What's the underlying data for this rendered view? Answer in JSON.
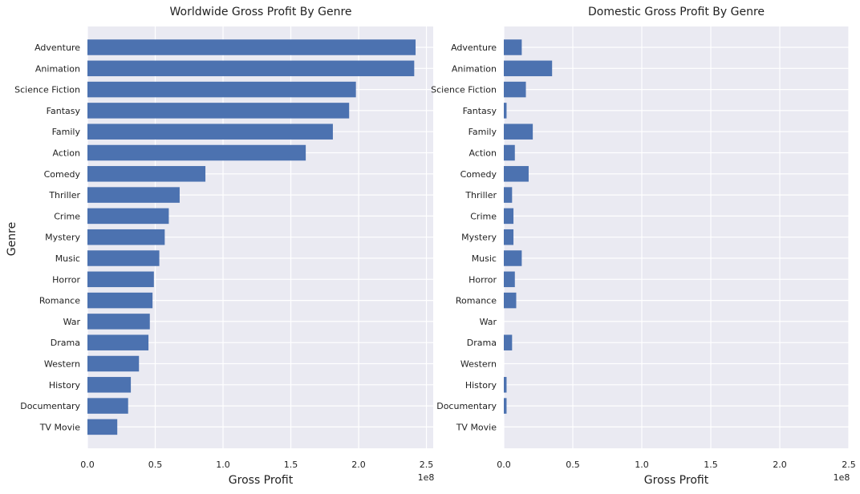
{
  "figure": {
    "ylabel": "Genre"
  },
  "chart_data": [
    {
      "type": "bar",
      "orientation": "horizontal",
      "title": "Worldwide Gross Profit By Genre",
      "xlabel": "Gross Profit",
      "ylabel": "Genre",
      "x_offset_label": "1e8",
      "xlim": [
        0,
        2.55
      ],
      "x_unit": "1e8",
      "x_ticks": [
        "0.0",
        "0.5",
        "1.0",
        "1.5",
        "2.0",
        "2.5"
      ],
      "grid": true,
      "bar_color": "#4c72b0",
      "background": "#eaeaf2",
      "categories": [
        "Adventure",
        "Animation",
        "Science Fiction",
        "Fantasy",
        "Family",
        "Action",
        "Comedy",
        "Thriller",
        "Crime",
        "Mystery",
        "Music",
        "Horror",
        "Romance",
        "War",
        "Drama",
        "Western",
        "History",
        "Documentary",
        "TV Movie"
      ],
      "values": [
        2.42,
        2.41,
        1.98,
        1.93,
        1.81,
        1.61,
        0.87,
        0.68,
        0.6,
        0.57,
        0.53,
        0.49,
        0.48,
        0.46,
        0.45,
        0.38,
        0.32,
        0.3,
        0.22
      ]
    },
    {
      "type": "bar",
      "orientation": "horizontal",
      "title": "Domestic Gross Profit By Genre",
      "xlabel": "Gross Profit",
      "ylabel": "",
      "x_offset_label": "1e8",
      "xlim": [
        0,
        2.5
      ],
      "x_unit": "1e8",
      "x_ticks": [
        "0.0",
        "0.5",
        "1.0",
        "1.5",
        "2.0",
        "2.5"
      ],
      "grid": true,
      "bar_color": "#4c72b0",
      "background": "#eaeaf2",
      "categories": [
        "Adventure",
        "Animation",
        "Science Fiction",
        "Fantasy",
        "Family",
        "Action",
        "Comedy",
        "Thriller",
        "Crime",
        "Mystery",
        "Music",
        "Horror",
        "Romance",
        "War",
        "Drama",
        "Western",
        "History",
        "Documentary",
        "TV Movie"
      ],
      "values": [
        0.13,
        0.35,
        0.16,
        0.02,
        0.21,
        0.08,
        0.18,
        0.06,
        0.07,
        0.07,
        0.13,
        0.08,
        0.09,
        0.0,
        0.06,
        0.0,
        0.02,
        0.02,
        0.0
      ]
    }
  ]
}
